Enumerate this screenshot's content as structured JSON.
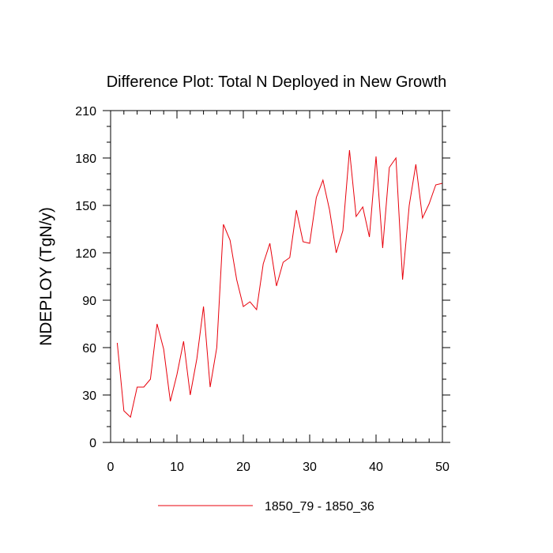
{
  "chart_data": {
    "type": "line",
    "title": "Difference Plot: Total N Deployed in New Growth",
    "xlabel": "",
    "ylabel": "NDEPLOY  (TgN/y)",
    "xlim": [
      0,
      50
    ],
    "ylim": [
      0,
      210
    ],
    "x_ticks": [
      0,
      10,
      20,
      30,
      40,
      50
    ],
    "y_ticks": [
      0,
      30,
      60,
      90,
      120,
      150,
      180,
      210
    ],
    "grid": false,
    "legend_position": "bottom-center",
    "series": [
      {
        "name": "1850_79 - 1850_36",
        "color": "#e8000b",
        "x": [
          1,
          2,
          3,
          4,
          5,
          6,
          7,
          8,
          9,
          10,
          11,
          12,
          13,
          14,
          15,
          16,
          17,
          18,
          19,
          20,
          21,
          22,
          23,
          24,
          25,
          26,
          27,
          28,
          29,
          30,
          31,
          32,
          33,
          34,
          35,
          36,
          37,
          38,
          39,
          40,
          41,
          42,
          43,
          44,
          45,
          46,
          47,
          48,
          49,
          50
        ],
        "values": [
          63,
          20,
          16,
          35,
          35,
          40,
          75,
          59,
          26,
          43,
          64,
          30,
          53,
          86,
          35,
          60,
          138,
          128,
          103,
          86,
          89,
          84,
          113,
          126,
          99,
          114,
          117,
          147,
          127,
          126,
          155,
          166,
          147,
          120,
          134,
          185,
          143,
          149,
          130,
          181,
          123,
          174,
          180,
          103,
          150,
          176,
          142,
          151,
          163,
          164
        ]
      }
    ]
  }
}
